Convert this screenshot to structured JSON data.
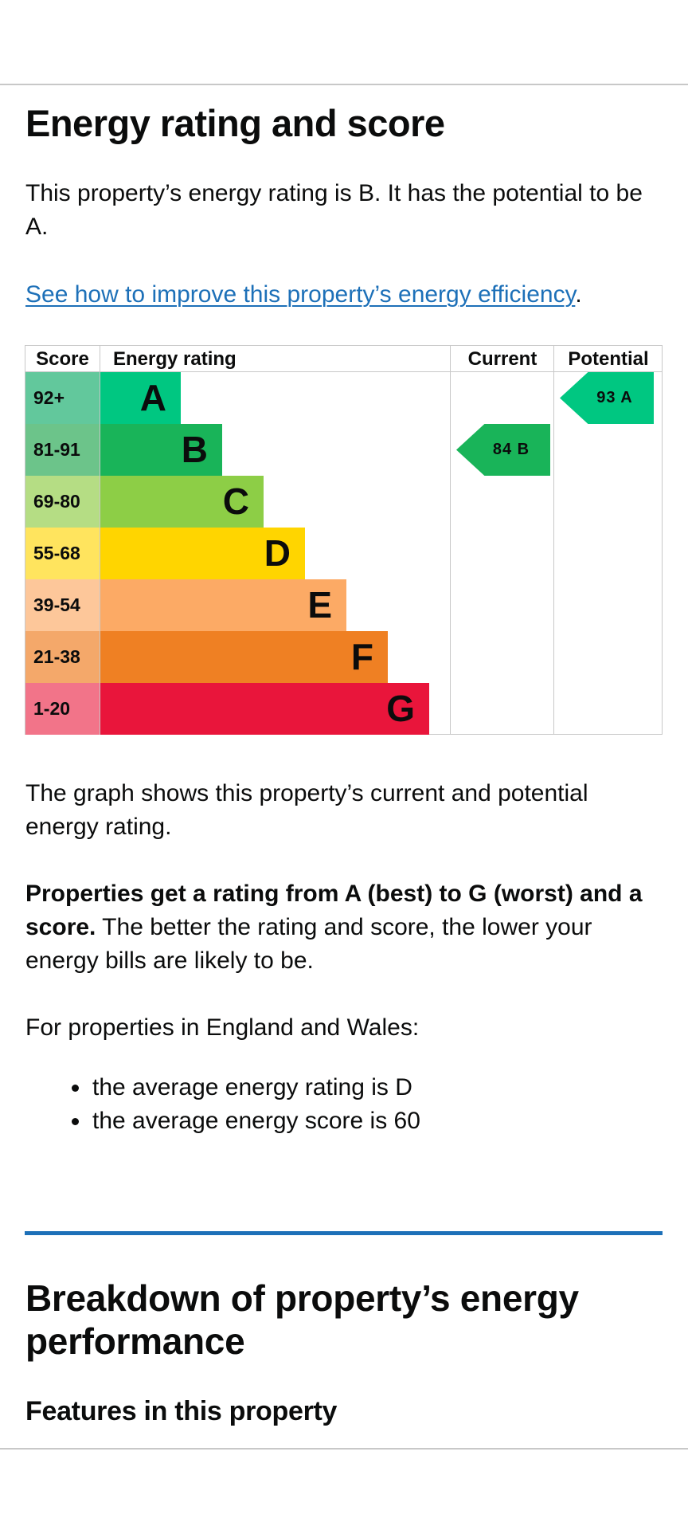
{
  "section": {
    "title": "Energy rating and score",
    "intro": "This property’s energy rating is B. It has the potential to be A.",
    "improve_link": "See how to improve this property’s energy efficiency",
    "improve_link_suffix": "."
  },
  "chart_data": {
    "type": "table",
    "headers": {
      "score": "Score",
      "rating": "Energy rating",
      "current": "Current",
      "potential": "Potential"
    },
    "bands": [
      {
        "score": "92+",
        "letter": "A",
        "color": "#00c781",
        "score_bg": "#62c89c"
      },
      {
        "score": "81-91",
        "letter": "B",
        "color": "#19b459",
        "score_bg": "#6cc48a"
      },
      {
        "score": "69-80",
        "letter": "C",
        "color": "#8dce46",
        "score_bg": "#b5dd84"
      },
      {
        "score": "55-68",
        "letter": "D",
        "color": "#ffd500",
        "score_bg": "#ffe45e"
      },
      {
        "score": "39-54",
        "letter": "E",
        "color": "#fcaa65",
        "score_bg": "#fdc79a"
      },
      {
        "score": "21-38",
        "letter": "F",
        "color": "#ef8023",
        "score_bg": "#f4a86a"
      },
      {
        "score": "1-20",
        "letter": "G",
        "color": "#e9153b",
        "score_bg": "#f27489"
      }
    ],
    "current": {
      "score": 84,
      "letter": "B",
      "label": "84 B",
      "color": "#19b459"
    },
    "potential": {
      "score": 93,
      "letter": "A",
      "label": "93 A",
      "color": "#00c781"
    }
  },
  "graph_desc": "The graph shows this property’s current and potential energy rating.",
  "rating_desc": {
    "bold": "Properties get a rating from A (best) to G (worst) and a score.",
    "rest": " The better the rating and score, the lower your energy bills are likely to be."
  },
  "averages": {
    "lead": "For properties in England and Wales:",
    "items": [
      "the average energy rating is D",
      "the average energy score is 60"
    ]
  },
  "breakdown": {
    "title": "Breakdown of property’s energy performance",
    "features_title": "Features in this property"
  }
}
